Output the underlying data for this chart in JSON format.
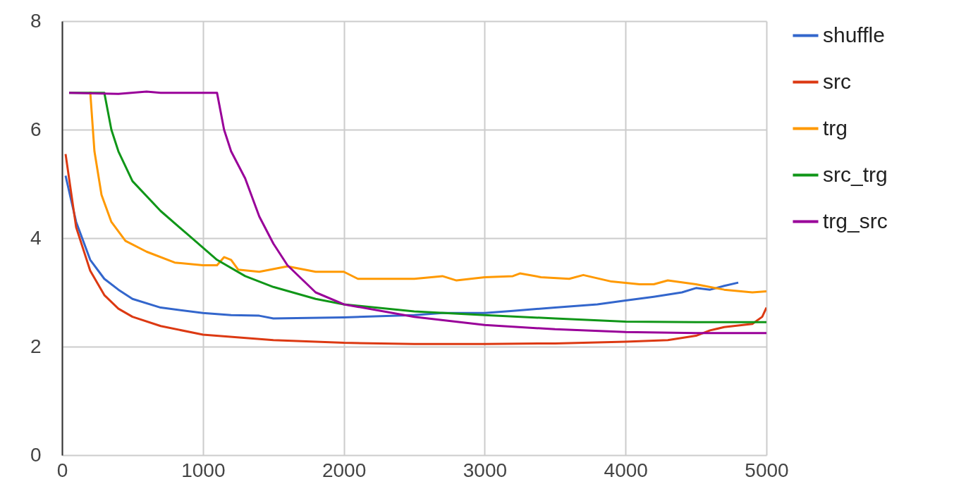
{
  "chart_data": {
    "type": "line",
    "xlim": [
      0,
      5000
    ],
    "xticks": [
      0,
      1000,
      2000,
      3000,
      4000,
      5000
    ],
    "ylim": [
      0,
      8
    ],
    "yticks": [
      0,
      2,
      4,
      6,
      8
    ],
    "grid": true,
    "legend": "right",
    "series": [
      {
        "name": "shuffle",
        "color": "#3366cc",
        "x": [
          25,
          100,
          200,
          300,
          400,
          500,
          700,
          1000,
          1200,
          1400,
          1500,
          2000,
          2500,
          2700,
          3000,
          3200,
          3500,
          3800,
          4000,
          4200,
          4400,
          4500,
          4600,
          4700,
          4800
        ],
        "values": [
          5.15,
          4.3,
          3.6,
          3.25,
          3.05,
          2.88,
          2.72,
          2.62,
          2.58,
          2.57,
          2.52,
          2.54,
          2.58,
          2.62,
          2.62,
          2.66,
          2.72,
          2.78,
          2.85,
          2.92,
          3.0,
          3.08,
          3.05,
          3.12,
          3.18
        ]
      },
      {
        "name": "src",
        "color": "#dc3912",
        "x": [
          25,
          100,
          200,
          300,
          400,
          500,
          700,
          1000,
          1500,
          2000,
          2500,
          3000,
          3500,
          4000,
          4300,
          4500,
          4600,
          4700,
          4900,
          4970,
          5000
        ],
        "values": [
          5.55,
          4.2,
          3.4,
          2.95,
          2.7,
          2.55,
          2.38,
          2.22,
          2.12,
          2.07,
          2.05,
          2.05,
          2.06,
          2.09,
          2.12,
          2.2,
          2.3,
          2.36,
          2.42,
          2.55,
          2.72
        ]
      },
      {
        "name": "trg",
        "color": "#ff9900",
        "x": [
          200,
          230,
          280,
          350,
          450,
          600,
          800,
          1000,
          1100,
          1150,
          1200,
          1250,
          1400,
          1600,
          1800,
          2000,
          2100,
          2300,
          2500,
          2700,
          2800,
          3000,
          3200,
          3250,
          3400,
          3600,
          3700,
          3900,
          4100,
          4200,
          4300,
          4500,
          4700,
          4900,
          5000
        ],
        "values": [
          6.7,
          5.6,
          4.8,
          4.3,
          3.95,
          3.75,
          3.55,
          3.5,
          3.5,
          3.65,
          3.6,
          3.42,
          3.38,
          3.48,
          3.38,
          3.38,
          3.25,
          3.25,
          3.25,
          3.3,
          3.22,
          3.28,
          3.3,
          3.35,
          3.28,
          3.25,
          3.32,
          3.2,
          3.15,
          3.15,
          3.22,
          3.15,
          3.05,
          3.0,
          3.02
        ]
      },
      {
        "name": "src_trg",
        "color": "#109618",
        "x": [
          50,
          300,
          350,
          400,
          500,
          700,
          900,
          1100,
          1300,
          1500,
          1800,
          2000,
          2500,
          3000,
          3500,
          4000,
          4500,
          5000
        ],
        "values": [
          6.68,
          6.68,
          6.0,
          5.6,
          5.05,
          4.5,
          4.05,
          3.6,
          3.3,
          3.1,
          2.88,
          2.78,
          2.65,
          2.58,
          2.52,
          2.46,
          2.45,
          2.45
        ]
      },
      {
        "name": "trg_src",
        "color": "#990099",
        "x": [
          50,
          400,
          600,
          700,
          1100,
          1150,
          1200,
          1300,
          1400,
          1500,
          1600,
          1800,
          2000,
          2500,
          3000,
          3500,
          4000,
          4500,
          5000
        ],
        "values": [
          6.68,
          6.66,
          6.7,
          6.68,
          6.68,
          6.0,
          5.6,
          5.1,
          4.4,
          3.9,
          3.5,
          3.0,
          2.78,
          2.55,
          2.4,
          2.32,
          2.27,
          2.25,
          2.25
        ]
      }
    ]
  }
}
